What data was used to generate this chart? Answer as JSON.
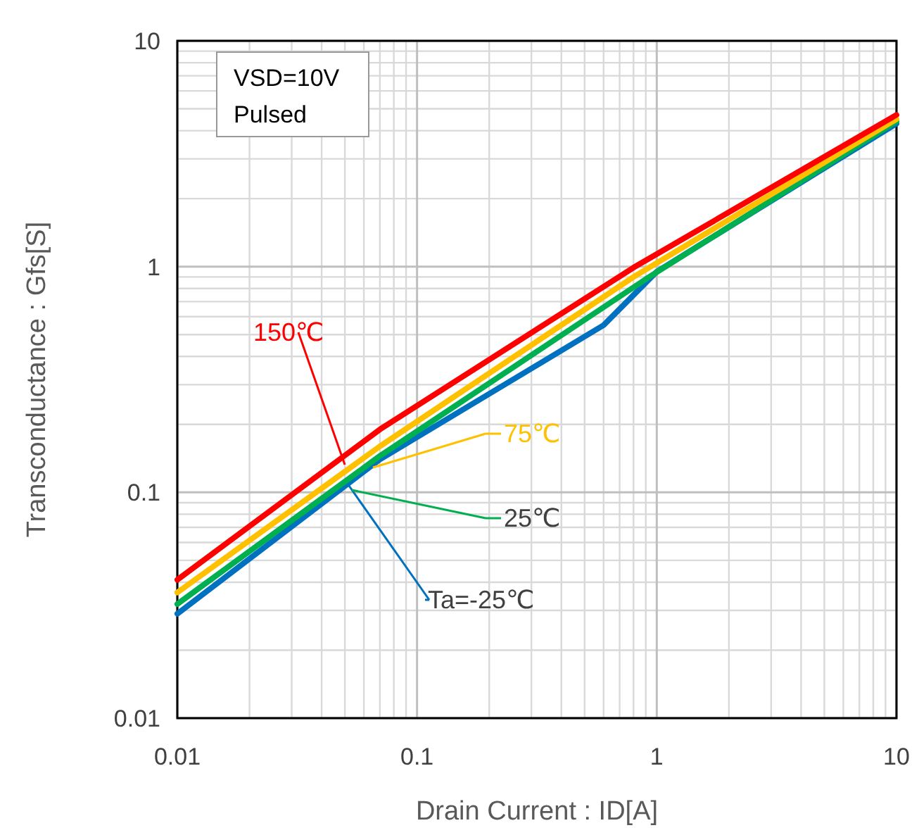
{
  "chart_data": {
    "type": "line",
    "xlabel": "Drain Current : ID[A]",
    "ylabel": "Transconductance : Gfs[S]",
    "log": "xy",
    "xlim": [
      0.01,
      10
    ],
    "ylim": [
      0.01,
      10
    ],
    "xticks": [
      0.01,
      0.1,
      1,
      10
    ],
    "yticks": [
      0.01,
      0.1,
      1,
      10
    ],
    "grid": true,
    "legend": "center",
    "annotations": [
      "VSD=10V",
      "Pulsed"
    ],
    "series": [
      {
        "name": "Ta=-25℃",
        "color": "#0070c0",
        "x": [
          0.01,
          0.07,
          0.6,
          1,
          10
        ],
        "values": [
          0.029,
          0.14,
          0.55,
          0.95,
          4.3
        ]
      },
      {
        "name": "25℃",
        "color": "#00b050",
        "x": [
          0.01,
          0.07,
          0.9,
          10
        ],
        "values": [
          0.032,
          0.145,
          0.88,
          4.4
        ]
      },
      {
        "name": "75℃",
        "color": "#ffc000",
        "x": [
          0.01,
          0.07,
          0.8,
          10
        ],
        "values": [
          0.036,
          0.16,
          0.9,
          4.5
        ]
      },
      {
        "name": "150℃",
        "color": "#ff0000",
        "x": [
          0.01,
          0.07,
          0.8,
          10
        ],
        "values": [
          0.041,
          0.19,
          0.99,
          4.7
        ]
      }
    ]
  }
}
